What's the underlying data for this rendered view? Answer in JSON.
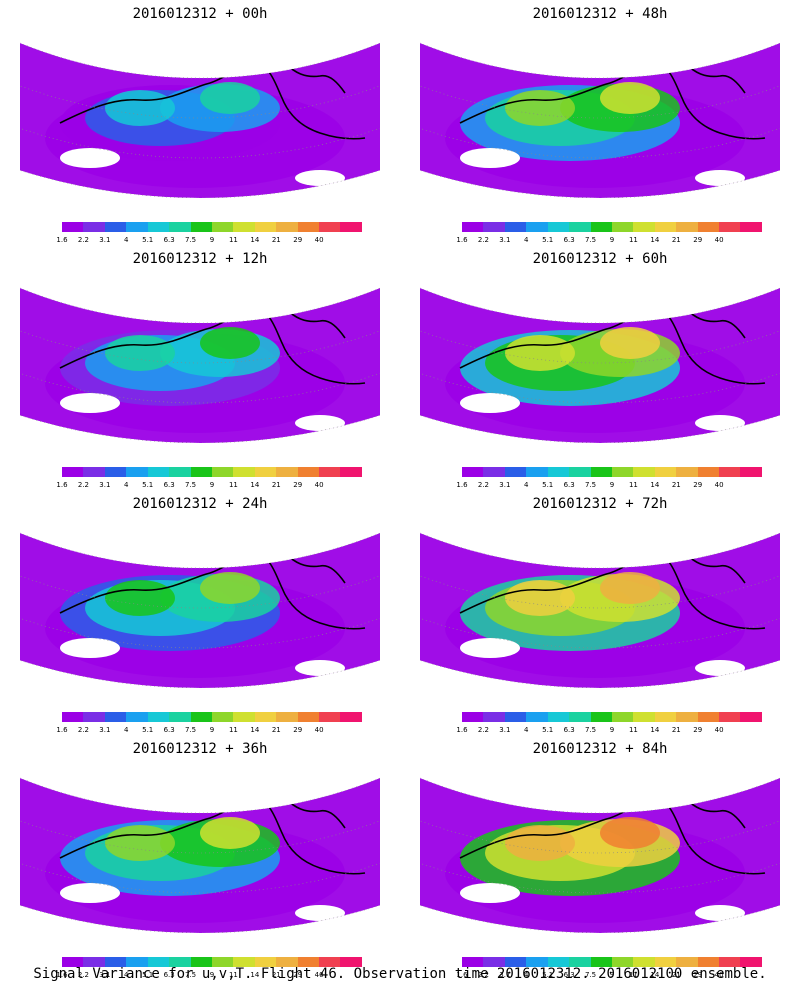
{
  "panels": [
    {
      "title": "2016012312 + 00h",
      "lead_hours": 0
    },
    {
      "title": "2016012312 + 48h",
      "lead_hours": 48
    },
    {
      "title": "2016012312 + 12h",
      "lead_hours": 12
    },
    {
      "title": "2016012312 + 60h",
      "lead_hours": 60
    },
    {
      "title": "2016012312 + 24h",
      "lead_hours": 24
    },
    {
      "title": "2016012312 + 72h",
      "lead_hours": 72
    },
    {
      "title": "2016012312 + 36h",
      "lead_hours": 36
    },
    {
      "title": "2016012312 + 84h",
      "lead_hours": 84
    }
  ],
  "colorbar": {
    "labels": [
      "1.6",
      "2.2",
      "3.1",
      "4",
      "5.1",
      "6.3",
      "7.5",
      "9",
      "11",
      "14",
      "21",
      "29",
      "40"
    ],
    "colors": [
      "#9b00e6",
      "#7a2ee6",
      "#2a5ee8",
      "#1aa0f0",
      "#16c8d6",
      "#1ad2a0",
      "#19c419",
      "#8ed62a",
      "#cfe030",
      "#f0d040",
      "#eeb040",
      "#f08030",
      "#f04050",
      "#f0146e"
    ]
  },
  "caption": "Signal Variance for u,v,T. Flight 46. Observation time 2016012312. 2016012100 ensemble."
}
